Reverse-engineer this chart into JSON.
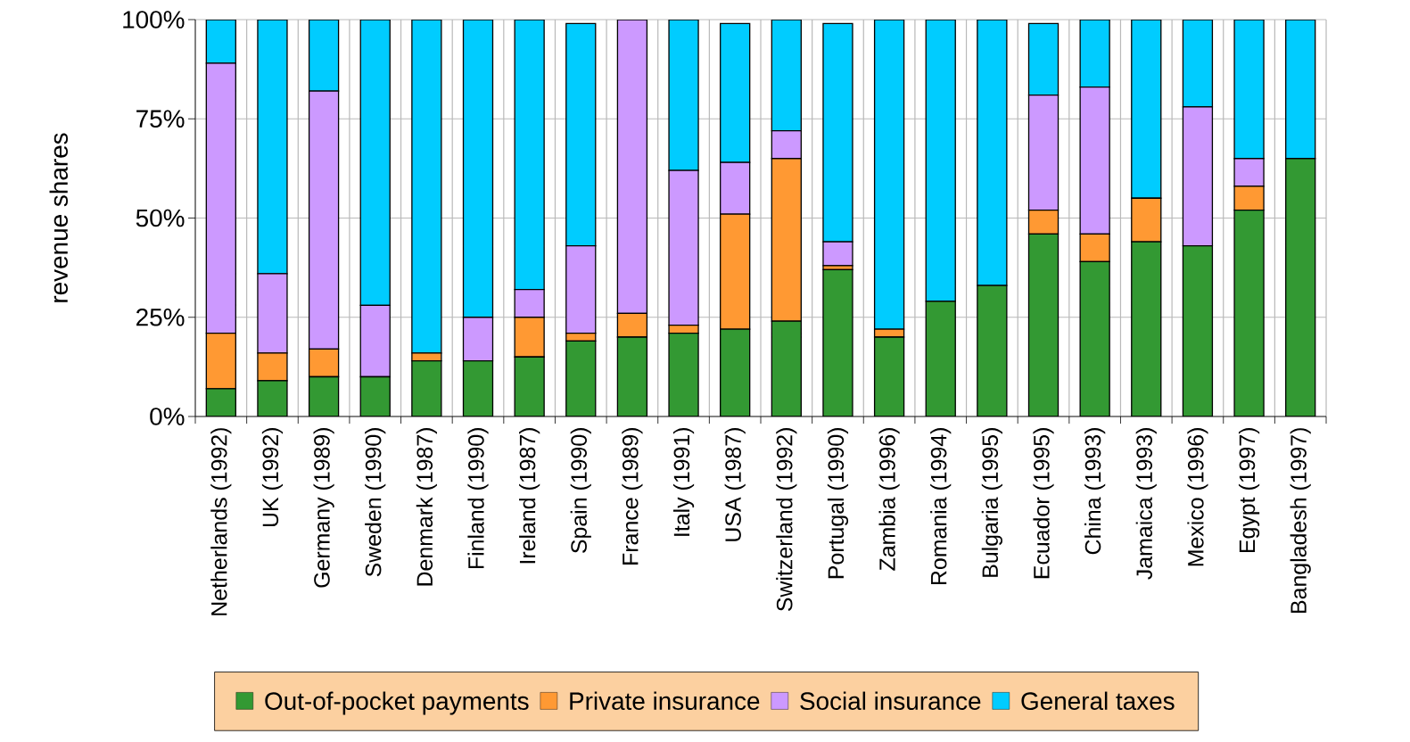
{
  "chart_data": {
    "type": "bar",
    "stacked": true,
    "ylabel": "revenue shares",
    "categories": [
      "Netherlands (1992)",
      "UK (1992)",
      "Germany (1989)",
      "Sweden (1990)",
      "Denmark (1987)",
      "Finland (1990)",
      "Ireland (1987)",
      "Spain (1990)",
      "France (1989)",
      "Italy (1991)",
      "USA (1987)",
      "Switzerland (1992)",
      "Portugal (1990)",
      "Zambia (1996)",
      "Romania (1994)",
      "Bulgaria (1995)",
      "Ecuador (1995)",
      "China (1993)",
      "Jamaica (1993)",
      "Mexico (1996)",
      "Egypt (1997)",
      "Bangladesh (1997)"
    ],
    "series": [
      {
        "name": "Out-of-pocket payments",
        "color": "#339933",
        "values": [
          7,
          9,
          10,
          10,
          14,
          14,
          15,
          19,
          20,
          21,
          22,
          24,
          37,
          20,
          29,
          33,
          46,
          39,
          44,
          43,
          52,
          65
        ]
      },
      {
        "name": "Private insurance",
        "color": "#ff9933",
        "values": [
          14,
          7,
          7,
          0,
          2,
          0,
          10,
          2,
          6,
          2,
          29,
          41,
          1,
          2,
          0,
          0,
          6,
          7,
          11,
          0,
          6,
          0
        ]
      },
      {
        "name": "Social insurance",
        "color": "#cc99ff",
        "values": [
          68,
          20,
          65,
          18,
          0,
          11,
          7,
          22,
          74,
          39,
          13,
          7,
          6,
          0,
          0,
          0,
          29,
          37,
          0,
          35,
          7,
          0
        ]
      },
      {
        "name": "General taxes",
        "color": "#00ccff",
        "values": [
          11,
          64,
          18,
          72,
          84,
          75,
          68,
          56,
          0,
          38,
          35,
          28,
          55,
          78,
          71,
          67,
          18,
          17,
          45,
          22,
          35,
          35
        ]
      }
    ],
    "ylim": [
      0,
      100
    ],
    "yticks": [
      {
        "value": 0,
        "label": "0%"
      },
      {
        "value": 25,
        "label": "25%"
      },
      {
        "value": 50,
        "label": "50%"
      },
      {
        "value": 75,
        "label": "75%"
      },
      {
        "value": 100,
        "label": "100%"
      }
    ],
    "grid": true,
    "legend": "bottom"
  }
}
